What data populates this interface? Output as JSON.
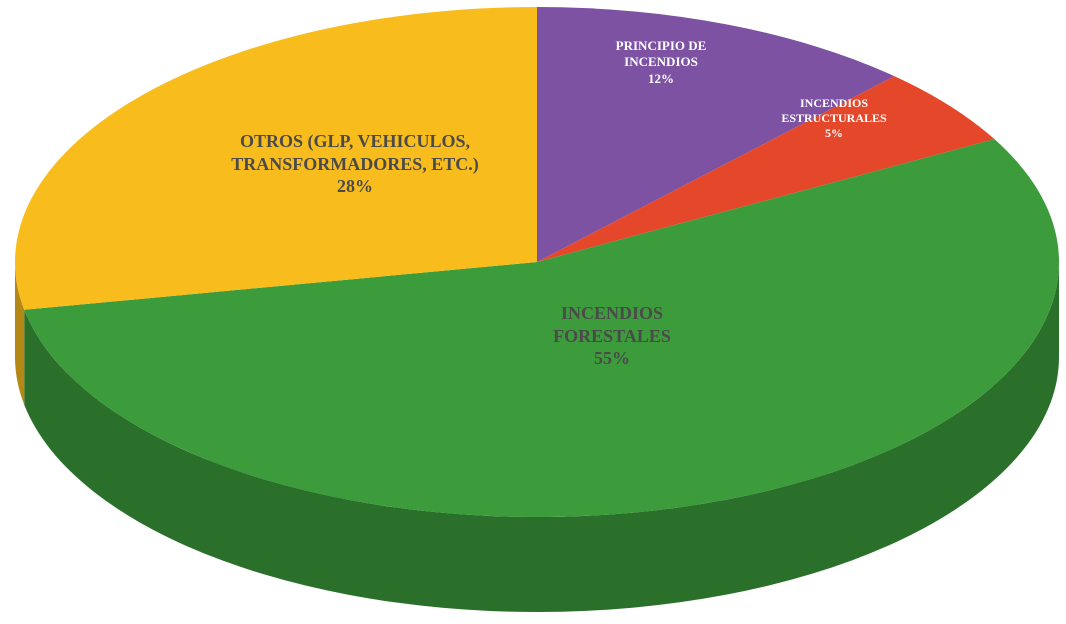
{
  "chart_data": {
    "type": "pie",
    "categories": [
      "PRINCIPIO DE\nINCENDIOS",
      "INCENDIOS\nESTRUCTURALES",
      "INCENDIOS\nFORESTALES",
      "OTROS (GLP, VEHICULOS,\nTRANSFORMADORES, ETC.)"
    ],
    "values": [
      12,
      5,
      55,
      28
    ],
    "value_labels": [
      "12%",
      "5%",
      "55%",
      "28%"
    ],
    "colors": [
      "#7d52a3",
      "#e5472b",
      "#3c9b3a",
      "#f8bd1c"
    ]
  }
}
